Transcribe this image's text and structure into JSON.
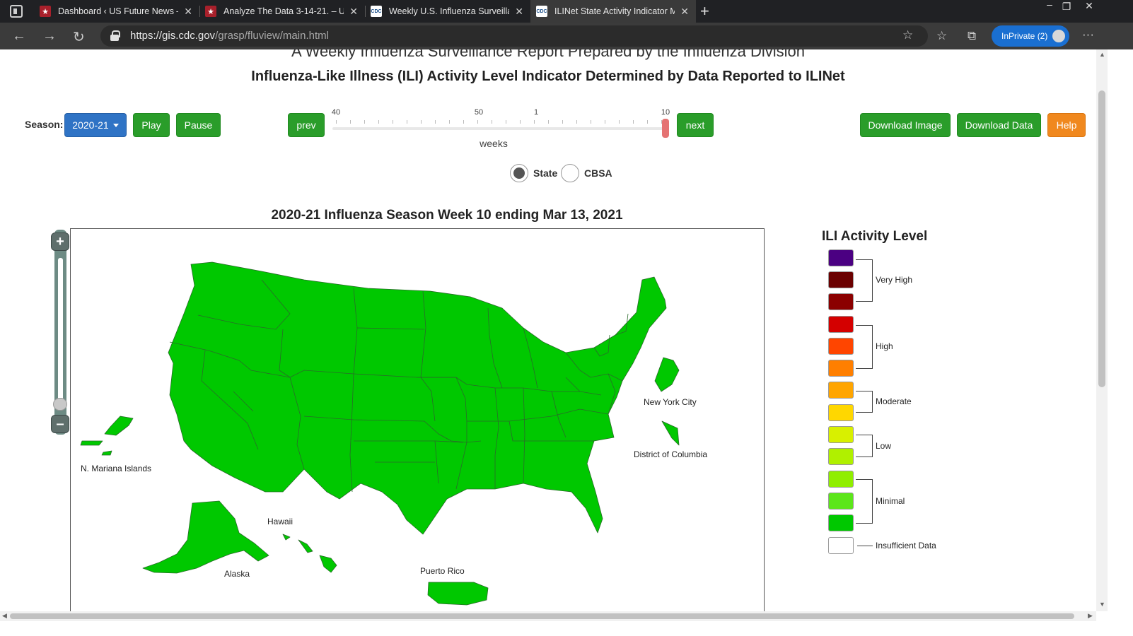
{
  "browser": {
    "tabs": [
      {
        "title": "Dashboard ‹ US Future News —",
        "icon": "star-favicon"
      },
      {
        "title": "Analyze The Data 3-14-21. – US",
        "icon": "star-favicon"
      },
      {
        "title": "Weekly U.S. Influenza Surveillanc",
        "icon": "cdc-favicon"
      },
      {
        "title": "ILINet State Activity Indicator Ma",
        "icon": "cdc-favicon",
        "active": true
      }
    ],
    "favicon_text": "CDC",
    "url_host": "https://gis.cdc.gov",
    "url_path": "/grasp/fluview/main.html",
    "inprivate_label": "InPrivate (2)"
  },
  "page": {
    "report_title": "A Weekly Influenza Surveillance Report Prepared by the Influenza Division",
    "ili_title": "Influenza-Like Illness (ILI) Activity Level Indicator Determined by Data Reported to ILINet",
    "season_label": "Season:",
    "season_value": "2020-21",
    "buttons": {
      "play": "Play",
      "pause": "Pause",
      "prev": "prev",
      "next": "next",
      "download_image": "Download Image",
      "download_data": "Download Data",
      "help": "Help"
    },
    "slider": {
      "tick_labels": [
        "40",
        "50",
        "1",
        "10"
      ],
      "axis_label": "weeks",
      "current_week": 10
    },
    "view_options": [
      {
        "label": "State",
        "selected": true
      },
      {
        "label": "CBSA",
        "selected": false
      }
    ],
    "map_title": "2020-21 Influenza Season Week 10 ending Mar 13, 2021",
    "map_fill_color": "#00c800",
    "map_labels": {
      "nyc": "New York City",
      "dc": "District of Columbia",
      "mariana": "N. Mariana Islands",
      "hawaii": "Hawaii",
      "alaska": "Alaska",
      "puerto_rico": "Puerto Rico"
    }
  },
  "legend": {
    "title": "ILI Activity Level",
    "swatch_colors": [
      "#4b0082",
      "#6b0000",
      "#8b0000",
      "#d40000",
      "#ff4500",
      "#ff7f00",
      "#ffa500",
      "#ffd700",
      "#d8f000",
      "#b0f000",
      "#90ee00",
      "#5ce61a",
      "#00c800",
      "#ffffff"
    ],
    "groups": {
      "very_high": "Very High",
      "high": "High",
      "moderate": "Moderate",
      "low": "Low",
      "minimal": "Minimal",
      "insufficient": "Insufficient Data"
    }
  }
}
